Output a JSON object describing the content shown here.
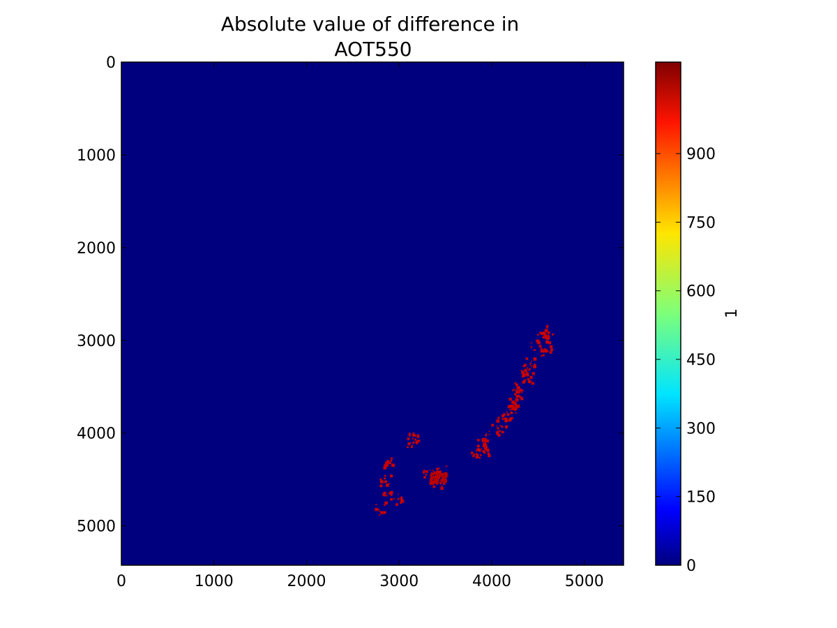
{
  "chart_data": {
    "type": "heatmap",
    "title": "Absolute value of difference in\nAOT550",
    "xlabel": "",
    "ylabel": "",
    "xlim": [
      0,
      5424
    ],
    "ylim": [
      5424,
      0
    ],
    "x_ticks": [
      "0",
      "1000",
      "2000",
      "3000",
      "4000",
      "5000"
    ],
    "y_ticks": [
      "0",
      "1000",
      "2000",
      "3000",
      "4000",
      "5000"
    ],
    "colormap": "jet",
    "background_value": 0,
    "colorbar": {
      "label": "1",
      "range": [
        0,
        1100
      ],
      "ticks": [
        "0",
        "150",
        "300",
        "450",
        "600",
        "750",
        "900"
      ]
    },
    "regions": [
      {
        "description": "scattered high-difference pixels along the coast",
        "value": 1100,
        "points": [
          [
            4550,
            2880
          ],
          [
            4600,
            2980
          ],
          [
            4580,
            3100
          ],
          [
            4480,
            3050
          ],
          [
            4400,
            3220
          ],
          [
            4350,
            3300
          ],
          [
            4380,
            3400
          ],
          [
            4300,
            3500
          ],
          [
            4260,
            3580
          ],
          [
            4220,
            3650
          ],
          [
            4200,
            3750
          ],
          [
            4150,
            3820
          ],
          [
            4100,
            3880
          ],
          [
            4050,
            3950
          ],
          [
            3950,
            4020
          ],
          [
            3880,
            4120
          ],
          [
            3820,
            4220
          ],
          [
            3300,
            4450
          ],
          [
            3350,
            4480
          ],
          [
            3420,
            4520
          ],
          [
            3380,
            4420
          ],
          [
            3450,
            4400
          ],
          [
            3120,
            4100
          ],
          [
            3150,
            4050
          ],
          [
            2860,
            4300
          ],
          [
            2850,
            4500
          ],
          [
            2880,
            4680
          ],
          [
            2780,
            4820
          ],
          [
            2980,
            4700
          ],
          [
            3900,
            4180
          ]
        ]
      }
    ],
    "grid": false,
    "legend": "none"
  }
}
